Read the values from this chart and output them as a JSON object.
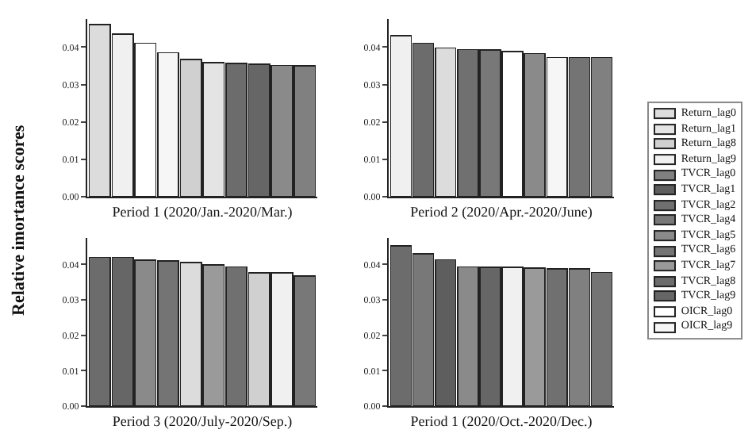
{
  "chart_data": [
    {
      "type": "bar",
      "stacked": true,
      "xlabel": "Period 1 (2020/Jan.-2020/Mar.)",
      "ylabel": "Relative imortance scores",
      "legend": "right",
      "categories": [
        null,
        null,
        null,
        null,
        null,
        null,
        null,
        null,
        null,
        null
      ],
      "ylim": [
        0,
        0.0475
      ],
      "yticks": [
        {
          "value": 0,
          "label": "0.00"
        },
        {
          "value": 0.01,
          "label": "0.01"
        },
        {
          "value": 0.02,
          "label": "0.02"
        },
        {
          "value": 0.03,
          "label": "0.03"
        },
        {
          "value": 0.04,
          "label": "0.04"
        }
      ],
      "grid": false,
      "series": [
        {
          "name": "Return_lag0",
          "color": "#dcdcdc",
          "values": [
            0.046,
            null,
            null,
            null,
            null,
            null,
            null,
            null,
            null,
            null
          ]
        },
        {
          "name": "Return_lag1",
          "color": "#e4e4e4",
          "values": [
            null,
            null,
            null,
            null,
            null,
            0.0358,
            null,
            null,
            null,
            null
          ]
        },
        {
          "name": "Return_lag8",
          "color": "#d0d0d0",
          "values": [
            null,
            null,
            null,
            null,
            0.0367,
            null,
            null,
            null,
            null,
            null
          ]
        },
        {
          "name": "Return_lag9",
          "color": "#f0f0f0",
          "values": [
            null,
            0.0435,
            null,
            null,
            null,
            null,
            null,
            null,
            null,
            null
          ]
        },
        {
          "name": "TVCR_lag0",
          "color": "#808080",
          "values": [
            null,
            null,
            null,
            null,
            null,
            null,
            null,
            null,
            null,
            0.035
          ]
        },
        {
          "name": "TVCR_lag1",
          "color": "#5e5e5e",
          "values": [
            null,
            null,
            null,
            null,
            null,
            null,
            null,
            null,
            null,
            null
          ]
        },
        {
          "name": "TVCR_lag2",
          "color": "#707070",
          "values": [
            null,
            null,
            null,
            null,
            null,
            null,
            null,
            null,
            null,
            null
          ]
        },
        {
          "name": "TVCR_lag4",
          "color": "#787878",
          "values": [
            null,
            null,
            null,
            null,
            null,
            null,
            null,
            null,
            null,
            null
          ]
        },
        {
          "name": "TVCR_lag5",
          "color": "#8a8a8a",
          "values": [
            null,
            null,
            null,
            null,
            null,
            null,
            null,
            null,
            0.0351,
            null
          ]
        },
        {
          "name": "TVCR_lag6",
          "color": "#747474",
          "values": [
            null,
            null,
            null,
            null,
            null,
            null,
            null,
            null,
            null,
            null
          ]
        },
        {
          "name": "TVCR_lag7",
          "color": "#9a9a9a",
          "values": [
            null,
            null,
            null,
            null,
            null,
            null,
            null,
            null,
            null,
            null
          ]
        },
        {
          "name": "TVCR_lag8",
          "color": "#6c6c6c",
          "values": [
            null,
            null,
            null,
            null,
            null,
            null,
            0.0356,
            null,
            null,
            null
          ]
        },
        {
          "name": "TVCR_lag9",
          "color": "#666666",
          "values": [
            null,
            null,
            null,
            null,
            null,
            null,
            null,
            0.0354,
            null,
            null
          ]
        },
        {
          "name": "OICR_lag0",
          "color": "#ffffff",
          "values": [
            null,
            null,
            0.041,
            null,
            null,
            null,
            null,
            null,
            null,
            null
          ]
        },
        {
          "name": "OICR_lag9",
          "color": "#f6f6f6",
          "values": [
            null,
            null,
            null,
            0.0385,
            null,
            null,
            null,
            null,
            null,
            null
          ]
        }
      ]
    },
    {
      "type": "bar",
      "stacked": true,
      "xlabel": "Period 2 (2020/Apr.-2020/June)",
      "categories": [
        null,
        null,
        null,
        null,
        null,
        null,
        null,
        null,
        null,
        null
      ],
      "ylim": [
        0,
        0.0475
      ],
      "yticks": [
        {
          "value": 0,
          "label": "0.00"
        },
        {
          "value": 0.01,
          "label": "0.01"
        },
        {
          "value": 0.02,
          "label": "0.02"
        },
        {
          "value": 0.03,
          "label": "0.03"
        },
        {
          "value": 0.04,
          "label": "0.04"
        }
      ],
      "grid": false,
      "series": [
        {
          "color": "#dcdcdc",
          "values": [
            null,
            null,
            0.0398,
            null,
            null,
            null,
            null,
            null,
            null,
            null
          ]
        },
        {
          "color": "#f0f0f0",
          "values": [
            0.043,
            null,
            null,
            null,
            null,
            null,
            null,
            null,
            null,
            null
          ]
        },
        {
          "color": "#808080",
          "values": [
            null,
            null,
            null,
            null,
            null,
            null,
            null,
            null,
            null,
            0.0372
          ]
        },
        {
          "color": "#707070",
          "values": [
            null,
            null,
            null,
            0.0393,
            null,
            null,
            null,
            null,
            null,
            null
          ]
        },
        {
          "color": "#787878",
          "values": [
            null,
            null,
            null,
            null,
            0.0392,
            null,
            null,
            null,
            null,
            null
          ]
        },
        {
          "color": "#8a8a8a",
          "values": [
            null,
            null,
            null,
            null,
            null,
            null,
            0.0383,
            null,
            null,
            null
          ]
        },
        {
          "color": "#747474",
          "values": [
            null,
            null,
            null,
            null,
            null,
            null,
            null,
            null,
            0.0372,
            null
          ]
        },
        {
          "color": "#6c6c6c",
          "values": [
            null,
            0.041,
            null,
            null,
            null,
            null,
            null,
            null,
            null,
            null
          ]
        },
        {
          "color": "#ffffff",
          "values": [
            null,
            null,
            null,
            null,
            null,
            0.0388,
            null,
            null,
            null,
            null
          ]
        },
        {
          "color": "#f6f6f6",
          "values": [
            null,
            null,
            null,
            null,
            null,
            null,
            null,
            0.0372,
            null,
            null
          ]
        }
      ]
    },
    {
      "type": "bar",
      "stacked": true,
      "xlabel": "Period 3 (2020/July-2020/Sep.)",
      "categories": [
        null,
        null,
        null,
        null,
        null,
        null,
        null,
        null,
        null,
        null
      ],
      "ylim": [
        0,
        0.0475
      ],
      "yticks": [
        {
          "value": 0,
          "label": "0.00"
        },
        {
          "value": 0.01,
          "label": "0.01"
        },
        {
          "value": 0.02,
          "label": "0.02"
        },
        {
          "value": 0.03,
          "label": "0.03"
        },
        {
          "value": 0.04,
          "label": "0.04"
        }
      ],
      "grid": false,
      "series": [
        {
          "color": "#dcdcdc",
          "values": [
            null,
            null,
            null,
            null,
            0.0405,
            null,
            null,
            null,
            null,
            null
          ]
        },
        {
          "color": "#d0d0d0",
          "values": [
            null,
            null,
            null,
            null,
            null,
            null,
            null,
            0.0377,
            null,
            null
          ]
        },
        {
          "color": "#f0f0f0",
          "values": [
            null,
            null,
            null,
            null,
            null,
            null,
            null,
            null,
            0.0376,
            null
          ]
        },
        {
          "color": "#707070",
          "values": [
            null,
            null,
            null,
            null,
            null,
            null,
            0.0393,
            null,
            null,
            null
          ]
        },
        {
          "color": "#787878",
          "values": [
            null,
            null,
            null,
            null,
            null,
            null,
            null,
            null,
            null,
            0.0367
          ]
        },
        {
          "color": "#8a8a8a",
          "values": [
            null,
            null,
            0.0412,
            null,
            null,
            null,
            null,
            null,
            null,
            null
          ]
        },
        {
          "color": "#747474",
          "values": [
            null,
            null,
            null,
            0.041,
            null,
            null,
            null,
            null,
            null,
            null
          ]
        },
        {
          "color": "#9a9a9a",
          "values": [
            null,
            null,
            null,
            null,
            null,
            0.0399,
            null,
            null,
            null,
            null
          ]
        },
        {
          "color": "#6c6c6c",
          "values": [
            0.042,
            null,
            null,
            null,
            null,
            null,
            null,
            null,
            null,
            null
          ]
        },
        {
          "color": "#666666",
          "values": [
            null,
            0.042,
            null,
            null,
            null,
            null,
            null,
            null,
            null,
            null
          ]
        }
      ]
    },
    {
      "type": "bar",
      "stacked": true,
      "xlabel": "Period 1 (2020/Oct.-2020/Dec.)",
      "categories": [
        null,
        null,
        null,
        null,
        null,
        null,
        null,
        null,
        null,
        null
      ],
      "ylim": [
        0,
        0.0475
      ],
      "yticks": [
        {
          "value": 0,
          "label": "0.00"
        },
        {
          "value": 0.01,
          "label": "0.01"
        },
        {
          "value": 0.02,
          "label": "0.02"
        },
        {
          "value": 0.03,
          "label": "0.03"
        },
        {
          "value": 0.04,
          "label": "0.04"
        }
      ],
      "grid": false,
      "series": [
        {
          "color": "#f0f0f0",
          "values": [
            null,
            null,
            null,
            null,
            null,
            0.0392,
            null,
            null,
            null,
            null
          ]
        },
        {
          "color": "#808080",
          "values": [
            null,
            null,
            null,
            null,
            null,
            null,
            null,
            null,
            0.0388,
            null
          ]
        },
        {
          "color": "#5e5e5e",
          "values": [
            null,
            null,
            0.0413,
            null,
            null,
            null,
            null,
            null,
            null,
            null
          ]
        },
        {
          "color": "#707070",
          "values": [
            null,
            null,
            null,
            null,
            null,
            null,
            null,
            0.0388,
            null,
            null
          ]
        },
        {
          "color": "#787878",
          "values": [
            null,
            0.043,
            null,
            null,
            null,
            null,
            null,
            null,
            null,
            null
          ]
        },
        {
          "color": "#8a8a8a",
          "values": [
            null,
            null,
            null,
            0.0393,
            null,
            null,
            null,
            null,
            null,
            null
          ]
        },
        {
          "color": "#747474",
          "values": [
            null,
            null,
            null,
            null,
            null,
            null,
            null,
            null,
            null,
            0.0378
          ]
        },
        {
          "color": "#9a9a9a",
          "values": [
            null,
            null,
            null,
            null,
            null,
            null,
            0.039,
            null,
            null,
            null
          ]
        },
        {
          "color": "#6c6c6c",
          "values": [
            0.0453,
            null,
            null,
            null,
            null,
            null,
            null,
            null,
            null,
            null
          ]
        },
        {
          "color": "#666666",
          "values": [
            null,
            null,
            null,
            null,
            0.0392,
            null,
            null,
            null,
            null,
            null
          ]
        }
      ]
    }
  ]
}
